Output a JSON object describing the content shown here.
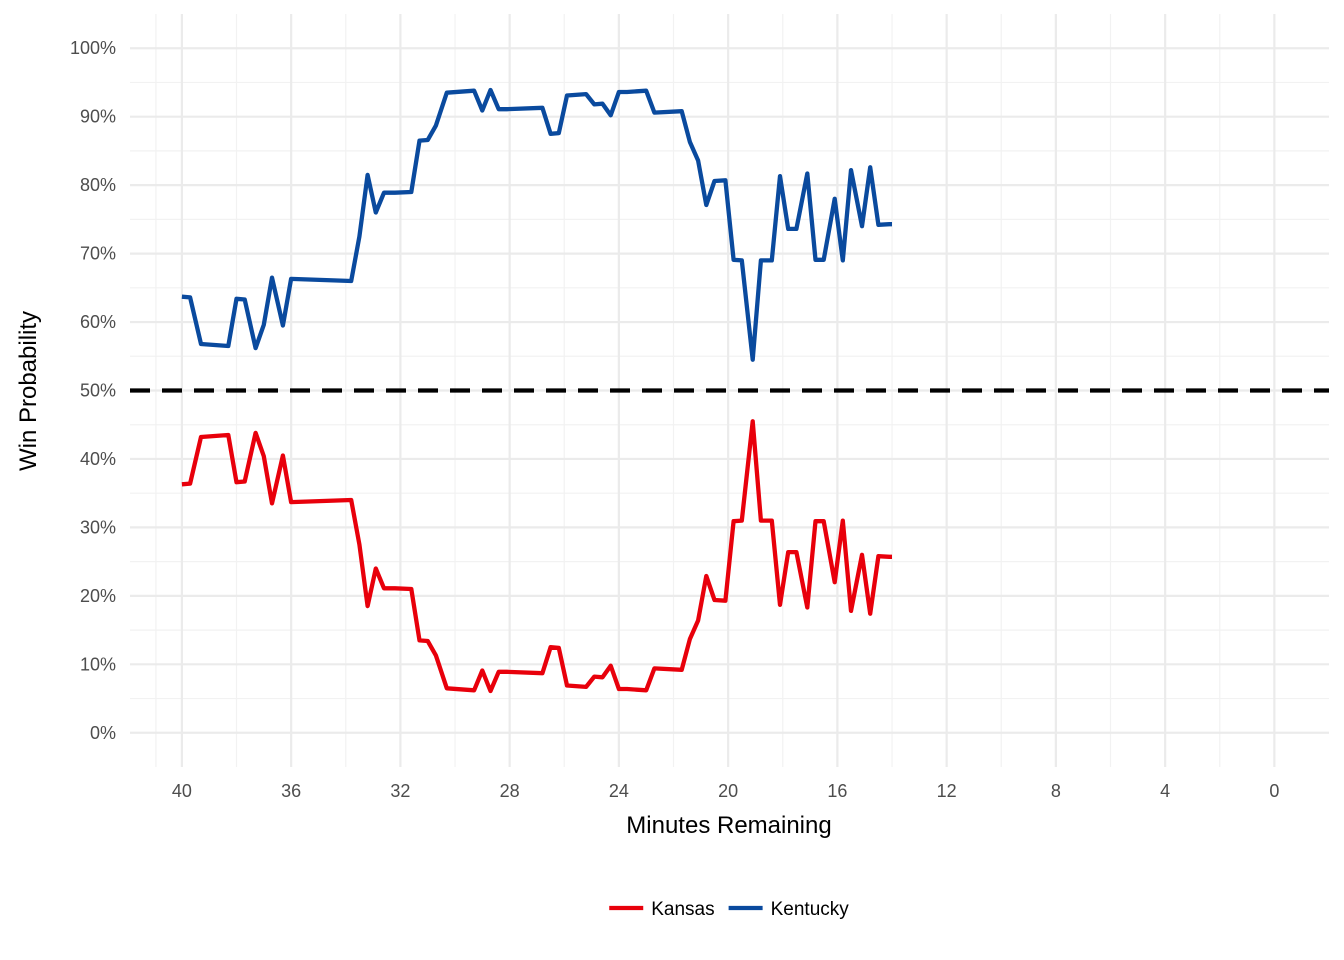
{
  "chart_data": {
    "type": "line",
    "title": "",
    "xlabel": "Minutes Remaining",
    "ylabel": "Win Probability",
    "xlim": [
      41.9,
      -2
    ],
    "ylim": [
      -0.05,
      1.05
    ],
    "x_reversed": true,
    "x_ticks": [
      40,
      36,
      32,
      28,
      24,
      20,
      16,
      12,
      8,
      4,
      0
    ],
    "x_tick_labels": [
      "40",
      "36",
      "32",
      "28",
      "24",
      "20",
      "16",
      "12",
      "8",
      "4",
      "0"
    ],
    "y_ticks": [
      0,
      0.1,
      0.2,
      0.3,
      0.4,
      0.5,
      0.6,
      0.7,
      0.8,
      0.9,
      1.0
    ],
    "y_tick_labels": [
      "0%",
      "10%",
      "20%",
      "30%",
      "40%",
      "50%",
      "60%",
      "70%",
      "80%",
      "90%",
      "100%"
    ],
    "grid": true,
    "legend_position": "bottom",
    "reference_line": {
      "y": 0.5,
      "style": "dashed",
      "color": "#000000"
    },
    "series": [
      {
        "name": "Kansas",
        "color": "#e8000b",
        "x": [
          40.0,
          39.7,
          39.3,
          38.3,
          38.0,
          37.7,
          37.3,
          37.0,
          36.7,
          36.3,
          36.0,
          33.8,
          33.5,
          33.2,
          32.9,
          32.6,
          32.2,
          31.6,
          31.3,
          31.0,
          30.7,
          30.3,
          29.3,
          29.0,
          28.7,
          28.4,
          28.1,
          26.8,
          26.5,
          26.2,
          25.9,
          25.2,
          24.9,
          24.6,
          24.3,
          24.0,
          23.7,
          23.0,
          22.7,
          21.7,
          21.4,
          21.1,
          20.8,
          20.5,
          20.1,
          19.8,
          19.5,
          19.1,
          18.8,
          18.4,
          18.1,
          17.8,
          17.5,
          17.1,
          16.8,
          16.5,
          16.1,
          15.8,
          15.5,
          15.1,
          14.8,
          14.5,
          14.1,
          14.0
        ],
        "values": [
          0.363,
          0.364,
          0.432,
          0.435,
          0.366,
          0.367,
          0.438,
          0.404,
          0.335,
          0.405,
          0.337,
          0.34,
          0.275,
          0.185,
          0.24,
          0.211,
          0.211,
          0.21,
          0.135,
          0.134,
          0.113,
          0.065,
          0.062,
          0.091,
          0.061,
          0.089,
          0.089,
          0.087,
          0.125,
          0.124,
          0.069,
          0.067,
          0.082,
          0.081,
          0.098,
          0.064,
          0.064,
          0.062,
          0.094,
          0.092,
          0.137,
          0.164,
          0.229,
          0.194,
          0.193,
          0.309,
          0.31,
          0.455,
          0.31,
          0.31,
          0.187,
          0.264,
          0.264,
          0.183,
          0.309,
          0.309,
          0.22,
          0.31,
          0.178,
          0.26,
          0.174,
          0.258,
          0.257,
          0.257
        ]
      },
      {
        "name": "Kentucky",
        "color": "#0a4a9e",
        "x": [
          40.0,
          39.7,
          39.3,
          38.3,
          38.0,
          37.7,
          37.3,
          37.0,
          36.7,
          36.3,
          36.0,
          33.8,
          33.5,
          33.2,
          32.9,
          32.6,
          32.2,
          31.6,
          31.3,
          31.0,
          30.7,
          30.3,
          29.3,
          29.0,
          28.7,
          28.4,
          28.1,
          26.8,
          26.5,
          26.2,
          25.9,
          25.2,
          24.9,
          24.6,
          24.3,
          24.0,
          23.7,
          23.0,
          22.7,
          21.7,
          21.4,
          21.1,
          20.8,
          20.5,
          20.1,
          19.8,
          19.5,
          19.1,
          18.8,
          18.4,
          18.1,
          17.8,
          17.5,
          17.1,
          16.8,
          16.5,
          16.1,
          15.8,
          15.5,
          15.1,
          14.8,
          14.5,
          14.1,
          14.0
        ],
        "values": [
          0.637,
          0.636,
          0.568,
          0.565,
          0.634,
          0.633,
          0.562,
          0.596,
          0.665,
          0.595,
          0.663,
          0.66,
          0.725,
          0.815,
          0.76,
          0.789,
          0.789,
          0.79,
          0.865,
          0.866,
          0.887,
          0.935,
          0.938,
          0.909,
          0.939,
          0.911,
          0.911,
          0.913,
          0.875,
          0.876,
          0.931,
          0.933,
          0.918,
          0.919,
          0.902,
          0.936,
          0.936,
          0.938,
          0.906,
          0.908,
          0.863,
          0.836,
          0.771,
          0.806,
          0.807,
          0.691,
          0.69,
          0.545,
          0.69,
          0.69,
          0.813,
          0.736,
          0.736,
          0.817,
          0.691,
          0.691,
          0.78,
          0.69,
          0.822,
          0.74,
          0.826,
          0.742,
          0.743,
          0.743
        ]
      }
    ]
  }
}
